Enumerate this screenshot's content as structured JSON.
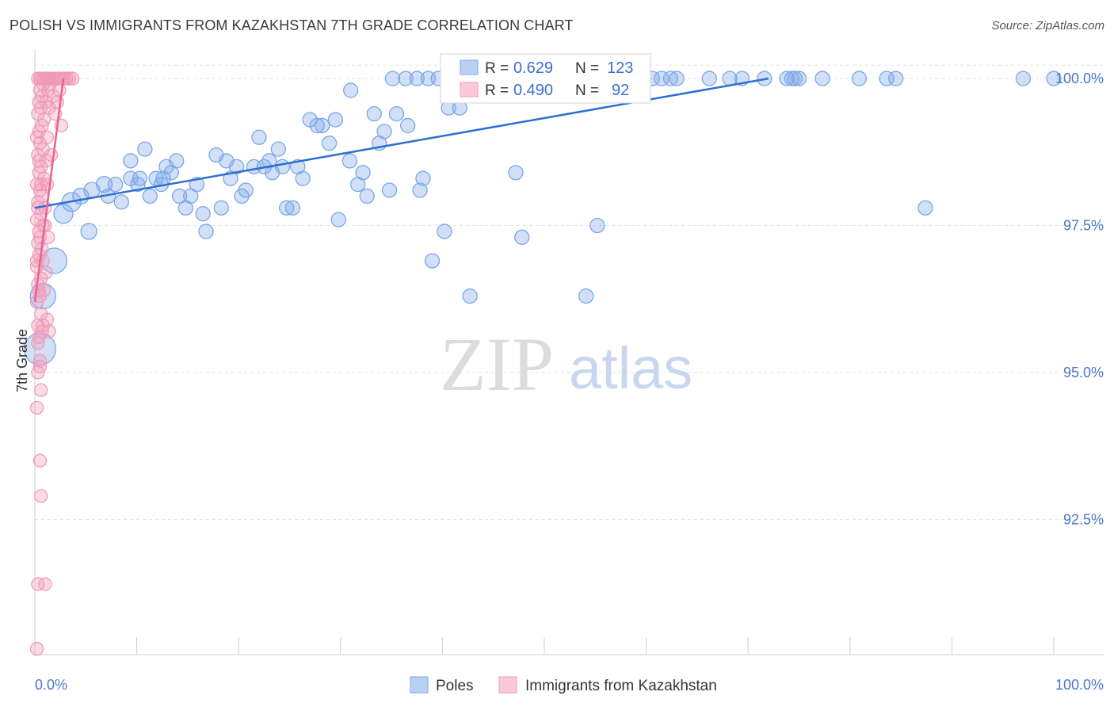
{
  "header": {
    "title": "POLISH VS IMMIGRANTS FROM KAZAKHSTAN 7TH GRADE CORRELATION CHART",
    "source": "Source: ZipAtlas.com"
  },
  "watermark": {
    "zip": "ZIP",
    "atlas": "atlas"
  },
  "chart_data": {
    "type": "scatter",
    "ylabel": "7th Grade",
    "xlim": [
      0,
      100
    ],
    "ylim": [
      90.2,
      100.5
    ],
    "x_tick_labels": [
      "0.0%",
      "100.0%"
    ],
    "y_ticks": [
      92.5,
      95.0,
      97.5,
      100.0
    ],
    "y_tick_labels": [
      "92.5%",
      "95.0%",
      "97.5%",
      "100.0%"
    ],
    "grid": true,
    "legend_placement": "bottom-center",
    "stats_box_placement": "top-center",
    "series": [
      {
        "name": "Poles",
        "color": "#7aa7e8",
        "line_color": "#2f6fd1",
        "r": "0.629",
        "n": "123",
        "trend": [
          [
            0,
            97.8
          ],
          [
            72,
            100.0
          ]
        ],
        "points": [
          [
            0.5,
            95.4,
            20
          ],
          [
            0.8,
            96.3,
            16
          ],
          [
            1.9,
            96.9,
            16
          ],
          [
            2.8,
            97.7,
            12
          ],
          [
            3.6,
            97.9,
            12
          ],
          [
            5.3,
            97.4,
            10
          ],
          [
            4.5,
            98.0,
            10
          ],
          [
            5.6,
            98.1,
            10
          ],
          [
            6.8,
            98.2,
            10
          ],
          [
            7.2,
            98.0,
            9
          ],
          [
            7.9,
            98.2,
            9
          ],
          [
            8.5,
            97.9,
            9
          ],
          [
            9.4,
            98.3,
            9
          ],
          [
            10.1,
            98.2,
            9
          ],
          [
            9.4,
            98.6,
            9
          ],
          [
            10.3,
            98.3,
            9
          ],
          [
            10.8,
            98.8,
            9
          ],
          [
            11.3,
            98.0,
            9
          ],
          [
            11.9,
            98.3,
            9
          ],
          [
            12.6,
            98.3,
            9
          ],
          [
            12.4,
            98.2,
            9
          ],
          [
            12.9,
            98.5,
            9
          ],
          [
            13.4,
            98.4,
            9
          ],
          [
            13.9,
            98.6,
            9
          ],
          [
            14.2,
            98.0,
            9
          ],
          [
            14.8,
            97.8,
            9
          ],
          [
            15.3,
            98.0,
            9
          ],
          [
            15.9,
            98.2,
            9
          ],
          [
            16.5,
            97.7,
            9
          ],
          [
            16.8,
            97.4,
            9
          ],
          [
            17.8,
            98.7,
            9
          ],
          [
            18.3,
            97.8,
            9
          ],
          [
            18.8,
            98.6,
            9
          ],
          [
            19.2,
            98.3,
            9
          ],
          [
            19.8,
            98.5,
            9
          ],
          [
            20.3,
            98.0,
            9
          ],
          [
            20.7,
            98.1,
            9
          ],
          [
            21.5,
            98.5,
            9
          ],
          [
            22.0,
            99.0,
            9
          ],
          [
            22.5,
            98.5,
            9
          ],
          [
            23.0,
            98.6,
            9
          ],
          [
            23.3,
            98.4,
            9
          ],
          [
            23.9,
            98.8,
            9
          ],
          [
            24.3,
            98.5,
            9
          ],
          [
            24.7,
            97.8,
            9
          ],
          [
            25.3,
            97.8,
            9
          ],
          [
            25.8,
            98.5,
            9
          ],
          [
            26.3,
            98.3,
            9
          ],
          [
            27.0,
            99.3,
            9
          ],
          [
            27.7,
            99.2,
            9
          ],
          [
            28.2,
            99.2,
            9
          ],
          [
            28.9,
            98.9,
            9
          ],
          [
            29.5,
            99.3,
            9
          ],
          [
            29.8,
            97.6,
            9
          ],
          [
            30.9,
            98.6,
            9
          ],
          [
            31.0,
            99.8,
            9
          ],
          [
            31.7,
            98.2,
            9
          ],
          [
            32.2,
            98.4,
            9
          ],
          [
            32.6,
            98.0,
            9
          ],
          [
            33.3,
            99.4,
            9
          ],
          [
            33.8,
            98.9,
            9
          ],
          [
            34.3,
            99.1,
            9
          ],
          [
            34.8,
            98.1,
            9
          ],
          [
            35.1,
            100.0,
            9
          ],
          [
            35.5,
            99.4,
            9
          ],
          [
            36.4,
            100.0,
            9
          ],
          [
            36.6,
            99.2,
            9
          ],
          [
            37.5,
            100.0,
            9
          ],
          [
            37.8,
            98.1,
            9
          ],
          [
            38.1,
            98.3,
            9
          ],
          [
            38.6,
            100.0,
            9
          ],
          [
            39.0,
            96.9,
            9
          ],
          [
            39.6,
            100.0,
            9
          ],
          [
            40.2,
            97.4,
            9
          ],
          [
            40.6,
            99.5,
            9
          ],
          [
            41.7,
            99.5,
            9
          ],
          [
            41.9,
            100.0,
            9
          ],
          [
            42.3,
            100.0,
            9
          ],
          [
            42.7,
            96.3,
            9
          ],
          [
            43.8,
            100.0,
            9
          ],
          [
            44.6,
            100.0,
            9
          ],
          [
            45.2,
            99.8,
            9
          ],
          [
            46.2,
            100.0,
            9
          ],
          [
            46.8,
            100.0,
            9
          ],
          [
            47.2,
            98.4,
            9
          ],
          [
            47.8,
            97.3,
            9
          ],
          [
            48.6,
            100.0,
            9
          ],
          [
            49.1,
            100.0,
            9
          ],
          [
            50.1,
            100.0,
            9
          ],
          [
            50.7,
            100.0,
            9
          ],
          [
            51.2,
            100.0,
            9
          ],
          [
            51.6,
            100.0,
            9
          ],
          [
            52.1,
            100.0,
            9
          ],
          [
            53.6,
            100.0,
            9
          ],
          [
            54.1,
            96.3,
            9
          ],
          [
            54.7,
            100.0,
            9
          ],
          [
            55.2,
            97.5,
            9
          ],
          [
            55.8,
            100.0,
            9
          ],
          [
            57.3,
            100.0,
            9
          ],
          [
            57.8,
            100.0,
            9
          ],
          [
            59.0,
            100.0,
            9
          ],
          [
            60.6,
            100.0,
            9
          ],
          [
            61.5,
            100.0,
            9
          ],
          [
            62.4,
            100.0,
            9
          ],
          [
            63.0,
            100.0,
            9
          ],
          [
            66.2,
            100.0,
            9
          ],
          [
            68.2,
            100.0,
            9
          ],
          [
            69.4,
            100.0,
            9
          ],
          [
            71.6,
            100.0,
            9
          ],
          [
            73.8,
            100.0,
            9
          ],
          [
            74.3,
            100.0,
            9
          ],
          [
            74.6,
            100.0,
            9
          ],
          [
            75.0,
            100.0,
            9
          ],
          [
            77.3,
            100.0,
            9
          ],
          [
            80.9,
            100.0,
            9
          ],
          [
            83.6,
            100.0,
            9
          ],
          [
            84.5,
            100.0,
            9
          ],
          [
            87.4,
            97.8,
            9
          ],
          [
            97.0,
            100.0,
            9
          ],
          [
            100.0,
            100.0,
            9
          ]
        ]
      },
      {
        "name": "Immigrants from Kazakhstan",
        "color": "#f09ab8",
        "line_color": "#e8638e",
        "r": "0.490",
        "n": "92",
        "trend": [
          [
            0,
            96.2
          ],
          [
            2.8,
            100.0
          ]
        ],
        "points": [
          [
            0.2,
            90.3,
            8
          ],
          [
            0.3,
            91.4,
            8
          ],
          [
            1.0,
            91.4,
            8
          ],
          [
            0.6,
            92.9,
            8
          ],
          [
            0.5,
            93.5,
            8
          ],
          [
            0.2,
            94.4,
            8
          ],
          [
            0.6,
            94.7,
            8
          ],
          [
            0.3,
            95.0,
            8
          ],
          [
            0.5,
            95.2,
            8
          ],
          [
            0.4,
            95.6,
            8
          ],
          [
            0.7,
            95.7,
            8
          ],
          [
            1.4,
            95.7,
            8
          ],
          [
            0.3,
            95.8,
            8
          ],
          [
            0.8,
            95.8,
            8
          ],
          [
            1.2,
            95.9,
            8
          ],
          [
            0.2,
            96.2,
            8
          ],
          [
            0.5,
            96.3,
            8
          ],
          [
            0.9,
            96.4,
            8
          ],
          [
            0.3,
            96.5,
            8
          ],
          [
            0.6,
            96.6,
            8
          ],
          [
            1.1,
            96.7,
            8
          ],
          [
            0.2,
            96.9,
            8
          ],
          [
            0.4,
            97.0,
            8
          ],
          [
            0.7,
            97.1,
            8
          ],
          [
            0.3,
            97.2,
            8
          ],
          [
            1.3,
            97.3,
            8
          ],
          [
            0.4,
            97.4,
            8
          ],
          [
            0.8,
            97.5,
            8
          ],
          [
            0.2,
            97.6,
            8
          ],
          [
            0.6,
            97.7,
            8
          ],
          [
            1.0,
            97.8,
            8
          ],
          [
            0.3,
            97.9,
            8
          ],
          [
            0.7,
            98.0,
            8
          ],
          [
            0.5,
            98.1,
            8
          ],
          [
            0.2,
            98.2,
            8
          ],
          [
            0.9,
            98.3,
            8
          ],
          [
            0.4,
            98.4,
            8
          ],
          [
            0.6,
            98.5,
            8
          ],
          [
            1.1,
            98.6,
            8
          ],
          [
            0.3,
            98.7,
            8
          ],
          [
            0.8,
            98.8,
            8
          ],
          [
            0.5,
            98.9,
            8
          ],
          [
            1.2,
            99.0,
            8
          ],
          [
            0.4,
            99.1,
            8
          ],
          [
            0.7,
            99.2,
            8
          ],
          [
            2.6,
            99.2,
            8
          ],
          [
            0.9,
            99.3,
            8
          ],
          [
            0.3,
            99.4,
            8
          ],
          [
            0.6,
            99.5,
            8
          ],
          [
            1.4,
            99.5,
            8
          ],
          [
            0.4,
            99.6,
            8
          ],
          [
            1.1,
            99.6,
            8
          ],
          [
            1.8,
            99.7,
            8
          ],
          [
            0.7,
            99.7,
            8
          ],
          [
            1.3,
            99.8,
            8
          ],
          [
            0.5,
            99.8,
            8
          ],
          [
            0.8,
            99.9,
            8
          ],
          [
            1.5,
            99.9,
            8
          ],
          [
            0.3,
            100.0,
            8
          ],
          [
            0.5,
            100.0,
            8
          ],
          [
            0.7,
            100.0,
            8
          ],
          [
            0.9,
            100.0,
            8
          ],
          [
            1.1,
            100.0,
            8
          ],
          [
            1.3,
            100.0,
            8
          ],
          [
            1.5,
            100.0,
            8
          ],
          [
            1.7,
            100.0,
            8
          ],
          [
            1.9,
            100.0,
            8
          ],
          [
            2.1,
            100.0,
            8
          ],
          [
            2.3,
            100.0,
            8
          ],
          [
            2.5,
            100.0,
            8
          ],
          [
            2.7,
            100.0,
            8
          ],
          [
            2.9,
            100.0,
            8
          ],
          [
            3.1,
            100.0,
            8
          ],
          [
            3.4,
            100.0,
            8
          ],
          [
            3.7,
            100.0,
            8
          ],
          [
            0.2,
            99.0,
            8
          ],
          [
            0.4,
            98.6,
            8
          ],
          [
            0.6,
            98.2,
            8
          ],
          [
            0.3,
            97.8,
            8
          ],
          [
            0.5,
            97.3,
            8
          ],
          [
            0.2,
            96.8,
            8
          ],
          [
            0.4,
            96.4,
            8
          ],
          [
            0.6,
            96.0,
            8
          ],
          [
            0.3,
            95.5,
            8
          ],
          [
            0.5,
            95.1,
            8
          ],
          [
            0.8,
            96.9,
            8
          ],
          [
            1.0,
            97.5,
            8
          ],
          [
            1.2,
            98.2,
            8
          ],
          [
            1.6,
            98.7,
            8
          ],
          [
            2.0,
            99.4,
            8
          ],
          [
            2.2,
            99.6,
            8
          ],
          [
            2.4,
            99.8,
            8
          ]
        ]
      }
    ]
  }
}
